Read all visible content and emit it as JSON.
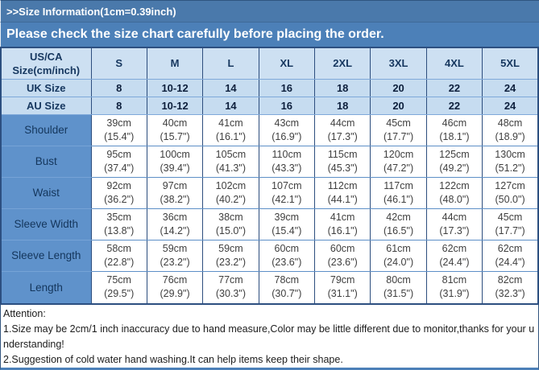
{
  "colors": {
    "banner_blue": "#4a79ab",
    "subtitle_blue": "#4c80b8",
    "header_light_blue": "#cde0f2",
    "label_column_blue": "#5f92cb",
    "border_navy": "#2d4e7e",
    "border_steel": "#5d8fc7",
    "header_text_navy": "#16375f",
    "value_text_gray": "#3f3f3f"
  },
  "title_bar": {
    "text": ">>Size Information(1cm=0.39inch)"
  },
  "subtitle_bar": {
    "text": "Please check the size chart carefully before placing the order."
  },
  "size_table": {
    "corner_header": [
      "US/CA",
      "Size(cm/inch)"
    ],
    "size_headers": [
      "S",
      "M",
      "L",
      "XL",
      "2XL",
      "3XL",
      "4XL",
      "5XL"
    ],
    "uk_row": {
      "label": "UK Size",
      "values": [
        "8",
        "10-12",
        "14",
        "16",
        "18",
        "20",
        "22",
        "24"
      ]
    },
    "au_row": {
      "label": "AU Size",
      "values": [
        "8",
        "10-12",
        "14",
        "16",
        "18",
        "20",
        "22",
        "24"
      ]
    },
    "measurement_rows": [
      {
        "label": "Shoulder",
        "cm": [
          "39cm",
          "40cm",
          "41cm",
          "43cm",
          "44cm",
          "45cm",
          "46cm",
          "48cm"
        ],
        "inch": [
          "(15.4\")",
          "(15.7\")",
          "(16.1\")",
          "(16.9\")",
          "(17.3\")",
          "(17.7\")",
          "(18.1\")",
          "(18.9\")"
        ]
      },
      {
        "label": "Bust",
        "cm": [
          "95cm",
          "100cm",
          "105cm",
          "110cm",
          "115cm",
          "120cm",
          "125cm",
          "130cm"
        ],
        "inch": [
          "(37.4\")",
          "(39.4\")",
          "(41.3\")",
          "(43.3\")",
          "(45.3\")",
          "(47.2\")",
          "(49.2\")",
          "(51.2\")"
        ]
      },
      {
        "label": "Waist",
        "cm": [
          "92cm",
          "97cm",
          "102cm",
          "107cm",
          "112cm",
          "117cm",
          "122cm",
          "127cm"
        ],
        "inch": [
          "(36.2\")",
          "(38.2\")",
          "(40.2\")",
          "(42.1\")",
          "(44.1\")",
          "(46.1\")",
          "(48.0\")",
          "(50.0\")"
        ]
      },
      {
        "label": "Sleeve Width",
        "cm": [
          "35cm",
          "36cm",
          "38cm",
          "39cm",
          "41cm",
          "42cm",
          "44cm",
          "45cm"
        ],
        "inch": [
          "(13.8\")",
          "(14.2\")",
          "(15.0\")",
          "(15.4\")",
          "(16.1\")",
          "(16.5\")",
          "(17.3\")",
          "(17.7\")"
        ]
      },
      {
        "label": "Sleeve Length",
        "cm": [
          "58cm",
          "59cm",
          "59cm",
          "60cm",
          "60cm",
          "61cm",
          "62cm",
          "62cm"
        ],
        "inch": [
          "(22.8\")",
          "(23.2\")",
          "(23.2\")",
          "(23.6\")",
          "(23.6\")",
          "(24.0\")",
          "(24.4\")",
          "(24.4\")"
        ]
      },
      {
        "label": "Length",
        "cm": [
          "75cm",
          "76cm",
          "77cm",
          "78cm",
          "79cm",
          "80cm",
          "81cm",
          "82cm"
        ],
        "inch": [
          "(29.5\")",
          "(29.9\")",
          "(30.3\")",
          "(30.7\")",
          "(31.1\")",
          "(31.5\")",
          "(31.9\")",
          "(32.3\")"
        ]
      }
    ]
  },
  "attention": {
    "heading": "Attention:",
    "lines": [
      "1.Size may be 2cm/1 inch inaccuracy due to hand measure,Color may be little different due to monitor,thanks for your understanding!",
      "2.Suggestion of cold water hand washing.It can help items keep their shape."
    ]
  }
}
